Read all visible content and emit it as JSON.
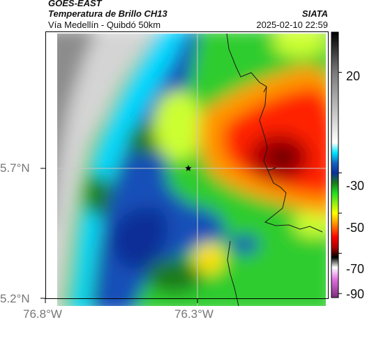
{
  "header": {
    "satellite": "GOES-EAST",
    "product": "Temperatura de Brillo CH13",
    "region": "Vía Medellín - Quibdó 50km",
    "agency": "SIATA",
    "timestamp": "2025-02-10 22:59"
  },
  "axes": {
    "lat_labels": [
      "5.7°N",
      "5.2°N"
    ],
    "lon_labels": [
      "76.8°W",
      "76.3°W"
    ]
  },
  "colorbar": {
    "labels": [
      "20",
      "-30",
      "-50",
      "-70",
      "-90"
    ],
    "stops": [
      {
        "value": 40,
        "color": "#000000"
      },
      {
        "value": 20,
        "color": "#7a7a7a"
      },
      {
        "value": -15,
        "color": "#ffffff"
      },
      {
        "value": -20,
        "color": "#00e5ff"
      },
      {
        "value": -25,
        "color": "#1565c0"
      },
      {
        "value": -30,
        "color": "#0d2f9c"
      },
      {
        "value": -35,
        "color": "#1b7a1b"
      },
      {
        "value": -40,
        "color": "#22dd22"
      },
      {
        "value": -50,
        "color": "#ffff00"
      },
      {
        "value": -55,
        "color": "#ff9900"
      },
      {
        "value": -62,
        "color": "#ff0000"
      },
      {
        "value": -67,
        "color": "#b00000"
      },
      {
        "value": -72,
        "color": "#000000"
      },
      {
        "value": -77,
        "color": "#ffffff"
      },
      {
        "value": -83,
        "color": "#e070e0"
      },
      {
        "value": -92,
        "color": "#7b2a7b"
      }
    ]
  },
  "marker": {
    "symbol": "star",
    "lon": -76.33,
    "lat": 5.7
  }
}
